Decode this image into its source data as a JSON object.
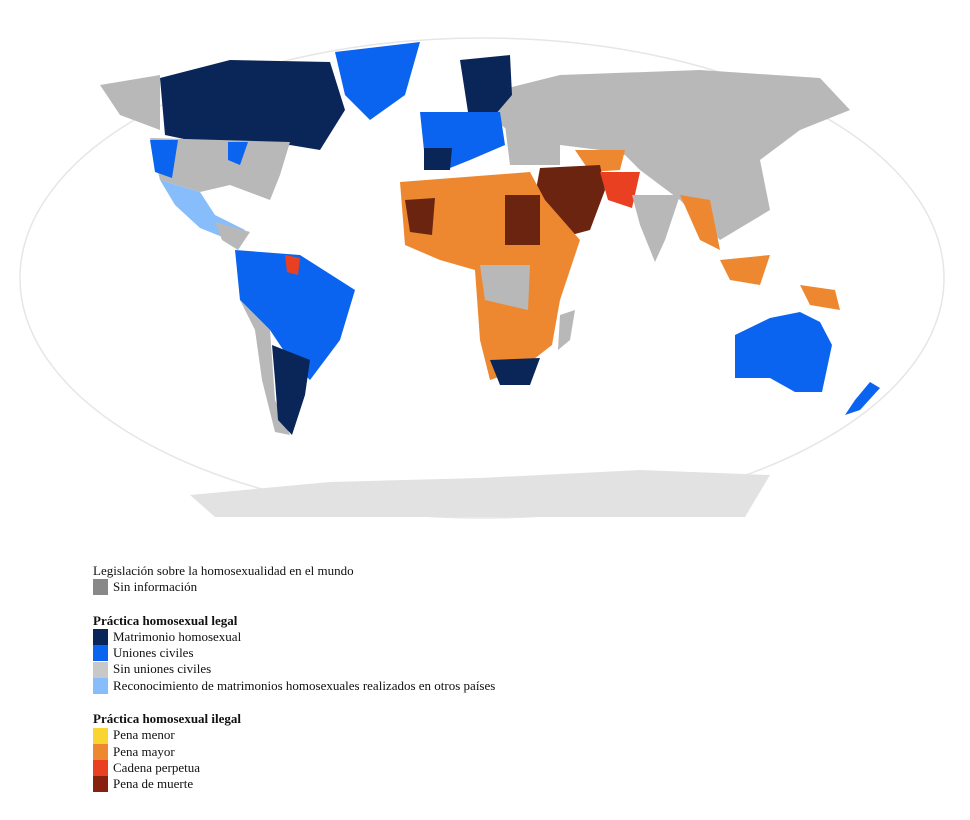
{
  "legend": {
    "title": "Legislación sobre la homosexualidad en el mundo",
    "no_info": {
      "label": "Sin información",
      "color": "#888888"
    },
    "legal": {
      "heading": "Práctica homosexual legal",
      "items": [
        {
          "label": "Matrimonio homosexual",
          "color": "#0a2658"
        },
        {
          "label": "Uniones civiles",
          "color": "#0a64f0"
        },
        {
          "label": "Sin uniones civiles",
          "color": "#c8c8c8"
        },
        {
          "label": "Reconocimiento de matrimonios homosexuales realizados en otros países",
          "color": "#86bdfa"
        }
      ]
    },
    "illegal": {
      "heading": "Práctica homosexual ilegal",
      "items": [
        {
          "label": "Pena menor",
          "color": "#f8d530"
        },
        {
          "label": "Pena mayor",
          "color": "#ee8830"
        },
        {
          "label": "Cadena perpetua",
          "color": "#e84020"
        },
        {
          "label": "Pena de muerte",
          "color": "#882010"
        }
      ]
    }
  }
}
